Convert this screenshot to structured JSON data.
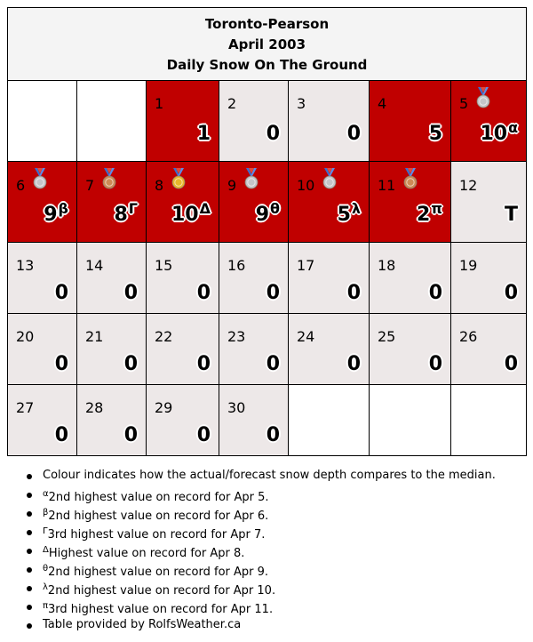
{
  "title": {
    "station": "Toronto-Pearson",
    "month": "April 2003",
    "subtitle": "Daily Snow On The Ground"
  },
  "colors": {
    "above_median": "#c00000",
    "at_median": "#ede8e8",
    "empty": "#ffffff",
    "medal_gold": "#e8b62a",
    "medal_silver": "#c4c4c8",
    "medal_bronze": "#cd8a55"
  },
  "calendar": {
    "weeks": [
      [
        {
          "blank": true
        },
        {
          "blank": true
        },
        {
          "day": "1",
          "value": "1",
          "sup": "",
          "style": "red",
          "medal": ""
        },
        {
          "day": "2",
          "value": "0",
          "sup": "",
          "style": "gray",
          "medal": ""
        },
        {
          "day": "3",
          "value": "0",
          "sup": "",
          "style": "gray",
          "medal": ""
        },
        {
          "day": "4",
          "value": "5",
          "sup": "",
          "style": "red",
          "medal": ""
        },
        {
          "day": "5",
          "value": "10",
          "sup": "α",
          "style": "red",
          "medal": "silver-medal-icon"
        }
      ],
      [
        {
          "day": "6",
          "value": "9",
          "sup": "β",
          "style": "red",
          "medal": "silver-medal-icon"
        },
        {
          "day": "7",
          "value": "8",
          "sup": "Γ",
          "style": "red",
          "medal": "bronze-medal-icon"
        },
        {
          "day": "8",
          "value": "10",
          "sup": "Δ",
          "style": "red",
          "medal": "gold-medal-icon"
        },
        {
          "day": "9",
          "value": "9",
          "sup": "θ",
          "style": "red",
          "medal": "silver-medal-icon"
        },
        {
          "day": "10",
          "value": "5",
          "sup": "λ",
          "style": "red",
          "medal": "silver-medal-icon"
        },
        {
          "day": "11",
          "value": "2",
          "sup": "π",
          "style": "red",
          "medal": "bronze-medal-icon"
        },
        {
          "day": "12",
          "value": "T",
          "sup": "",
          "style": "gray",
          "medal": ""
        }
      ],
      [
        {
          "day": "13",
          "value": "0",
          "sup": "",
          "style": "gray",
          "medal": ""
        },
        {
          "day": "14",
          "value": "0",
          "sup": "",
          "style": "gray",
          "medal": ""
        },
        {
          "day": "15",
          "value": "0",
          "sup": "",
          "style": "gray",
          "medal": ""
        },
        {
          "day": "16",
          "value": "0",
          "sup": "",
          "style": "gray",
          "medal": ""
        },
        {
          "day": "17",
          "value": "0",
          "sup": "",
          "style": "gray",
          "medal": ""
        },
        {
          "day": "18",
          "value": "0",
          "sup": "",
          "style": "gray",
          "medal": ""
        },
        {
          "day": "19",
          "value": "0",
          "sup": "",
          "style": "gray",
          "medal": ""
        }
      ],
      [
        {
          "day": "20",
          "value": "0",
          "sup": "",
          "style": "gray",
          "medal": ""
        },
        {
          "day": "21",
          "value": "0",
          "sup": "",
          "style": "gray",
          "medal": ""
        },
        {
          "day": "22",
          "value": "0",
          "sup": "",
          "style": "gray",
          "medal": ""
        },
        {
          "day": "23",
          "value": "0",
          "sup": "",
          "style": "gray",
          "medal": ""
        },
        {
          "day": "24",
          "value": "0",
          "sup": "",
          "style": "gray",
          "medal": ""
        },
        {
          "day": "25",
          "value": "0",
          "sup": "",
          "style": "gray",
          "medal": ""
        },
        {
          "day": "26",
          "value": "0",
          "sup": "",
          "style": "gray",
          "medal": ""
        }
      ],
      [
        {
          "day": "27",
          "value": "0",
          "sup": "",
          "style": "gray",
          "medal": ""
        },
        {
          "day": "28",
          "value": "0",
          "sup": "",
          "style": "gray",
          "medal": ""
        },
        {
          "day": "29",
          "value": "0",
          "sup": "",
          "style": "gray",
          "medal": ""
        },
        {
          "day": "30",
          "value": "0",
          "sup": "",
          "style": "gray",
          "medal": ""
        },
        {
          "blank": true
        },
        {
          "blank": true
        },
        {
          "blank": true
        }
      ]
    ]
  },
  "notes": [
    {
      "sup": "",
      "text": "Colour indicates how the actual/forecast snow depth compares to the median."
    },
    {
      "sup": "α",
      "text": "2nd highest value on record for Apr 5."
    },
    {
      "sup": "β",
      "text": "2nd highest value on record for Apr 6."
    },
    {
      "sup": "Γ",
      "text": "3rd highest value on record for Apr 7."
    },
    {
      "sup": "Δ",
      "text": "Highest value on record for Apr 8."
    },
    {
      "sup": "θ",
      "text": "2nd highest value on record for Apr 9."
    },
    {
      "sup": "λ",
      "text": "2nd highest value on record for Apr 10."
    },
    {
      "sup": "π",
      "text": "3rd highest value on record for Apr 11."
    },
    {
      "sup": "",
      "text": "Table provided by RolfsWeather.ca"
    }
  ]
}
